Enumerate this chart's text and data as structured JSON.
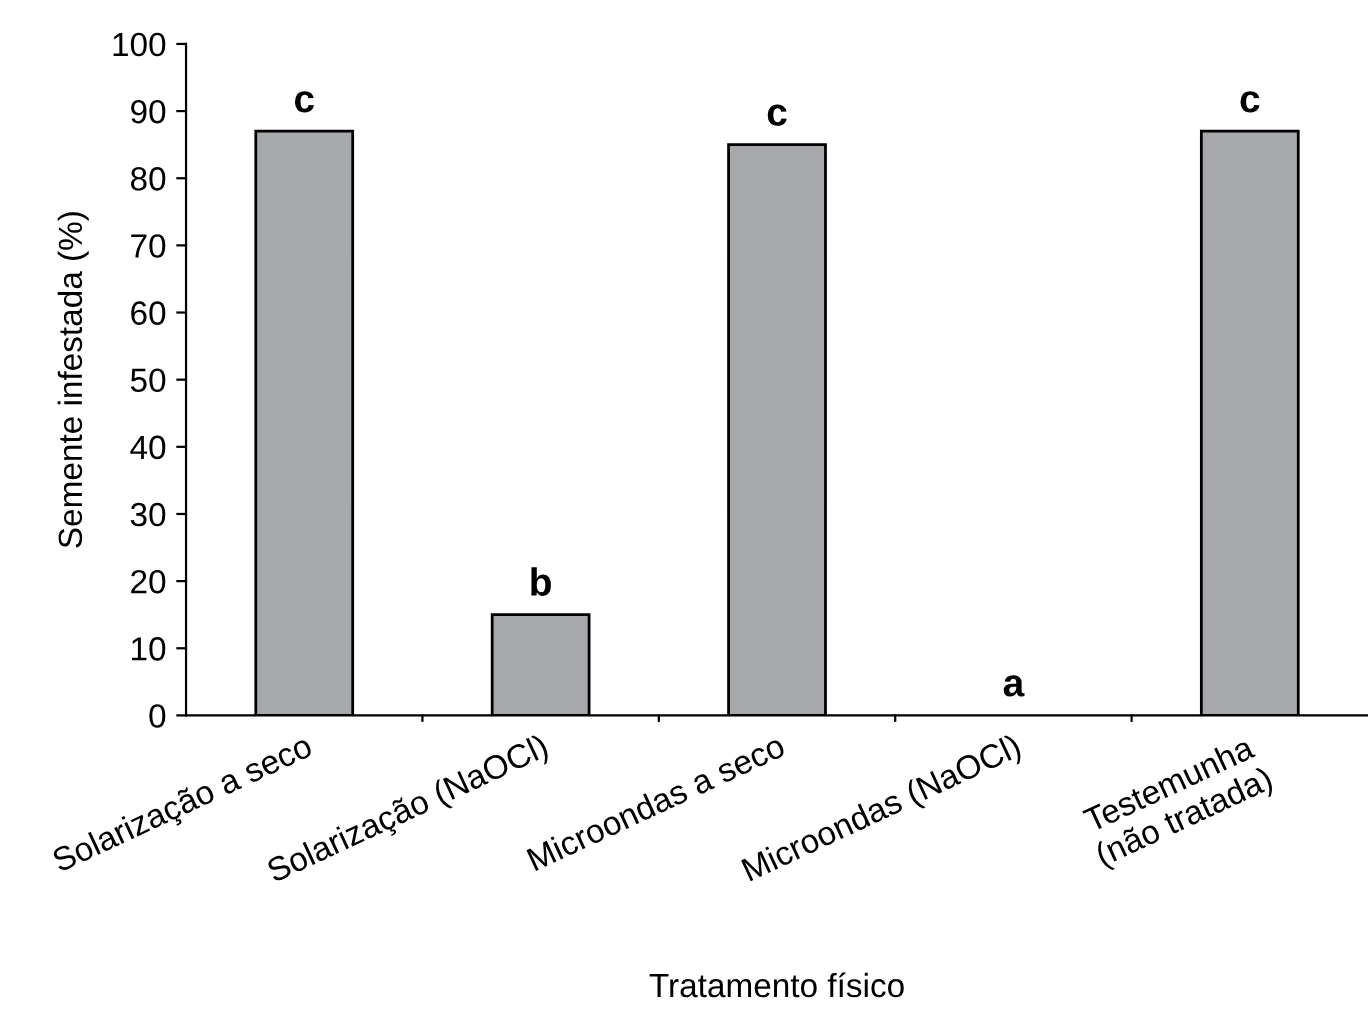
{
  "chart_data": {
    "type": "bar",
    "xlabel": "Tratamento físico",
    "ylabel": "Semente infestada (%)",
    "categories": [
      "Solarização a seco",
      "Solarização (NaOCl)",
      "Microondas a seco",
      "Microondas (NaOCl)",
      "Testemunha\n(não tratada)"
    ],
    "values": [
      87,
      15,
      85,
      0,
      87
    ],
    "color": "#a7a8ac",
    "ylim": [
      0,
      100
    ],
    "yticks": [
      0,
      10,
      20,
      30,
      40,
      50,
      60,
      70,
      80,
      90,
      100
    ],
    "grid": false,
    "annotations": [
      {
        "text": "c",
        "x": "Solarização a seco",
        "y": 87
      },
      {
        "text": "b",
        "x": "Solarização (NaOCl)",
        "y": 15
      },
      {
        "text": "c",
        "x": "Microondas a seco",
        "y": 85
      },
      {
        "text": "a",
        "x": "Microondas (NaOCl)",
        "y": 0
      },
      {
        "text": "c",
        "x": "Testemunha\n(não tratada)",
        "y": 87
      }
    ]
  }
}
